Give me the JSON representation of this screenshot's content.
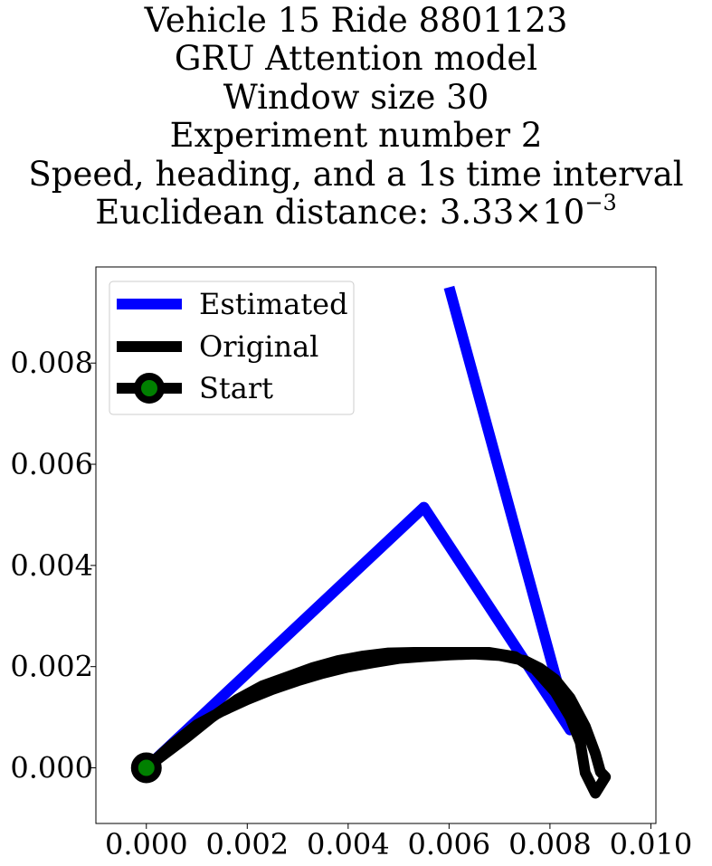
{
  "chart_data": {
    "type": "line",
    "title": [
      "Vehicle 15 Ride 8801123",
      "GRU Attention model",
      "Window size 30",
      "Experiment number 2",
      "Speed, heading, and a 1s time interval"
    ],
    "distance": {
      "prefix": "Euclidean distance: 3.33×10",
      "exponent": "−3"
    },
    "xlabel": "",
    "ylabel": "",
    "xlim": [
      -0.001,
      0.0101
    ],
    "ylim": [
      -0.0011,
      0.0099
    ],
    "xticks": [
      "0.000",
      "0.002",
      "0.004",
      "0.006",
      "0.008",
      "0.010"
    ],
    "xtick_values": [
      0.0,
      0.002,
      0.004,
      0.006,
      0.008,
      0.01
    ],
    "yticks": [
      "0.000",
      "0.002",
      "0.004",
      "0.006",
      "0.008"
    ],
    "ytick_values": [
      0.0,
      0.002,
      0.004,
      0.006,
      0.008
    ],
    "grid": false,
    "legend": {
      "location": "upper left",
      "entries": [
        "Estimated",
        "Original",
        "Start"
      ]
    },
    "series": [
      {
        "name": "Estimated",
        "color": "#0000ff",
        "x": [
          0.0,
          0.0055,
          0.0084,
          0.006
        ],
        "y": [
          0.0,
          0.00515,
          0.00075,
          0.0095
        ]
      },
      {
        "name": "Original",
        "color": "#000000",
        "x": [
          0.0,
          0.0005,
          0.001,
          0.0015,
          0.002,
          0.0025,
          0.003,
          0.0035,
          0.004,
          0.0045,
          0.005,
          0.0055,
          0.006,
          0.0065,
          0.007,
          0.0075,
          0.0078,
          0.0081,
          0.0084,
          0.0087,
          0.0089,
          0.009,
          0.0091,
          0.0089,
          0.0087,
          0.0086,
          0.0084,
          0.0081,
          0.0077,
          0.0073,
          0.0068,
          0.0063,
          0.0058,
          0.0053,
          0.0048,
          0.0043,
          0.0038,
          0.0033,
          0.0028,
          0.0023,
          0.0018,
          0.0013,
          0.0008,
          0.0004,
          0.0
        ],
        "y": [
          0.0,
          0.00045,
          0.00085,
          0.00112,
          0.00135,
          0.00155,
          0.00172,
          0.00187,
          0.00199,
          0.00208,
          0.00216,
          0.0022,
          0.00223,
          0.00225,
          0.00222,
          0.00212,
          0.00197,
          0.00175,
          0.00138,
          0.00082,
          0.00028,
          -8e-05,
          -0.00018,
          -0.0005,
          -0.0001,
          0.0005,
          0.001,
          0.0015,
          0.00195,
          0.0022,
          0.00228,
          0.00228,
          0.00228,
          0.00228,
          0.00227,
          0.00221,
          0.00212,
          0.00198,
          0.0018,
          0.00162,
          0.00135,
          0.001,
          0.0006,
          0.0003,
          0.0
        ]
      }
    ],
    "start": {
      "name": "Start",
      "x": 0.0,
      "y": 0.0,
      "marker_color": "#008000",
      "edge_color": "#000000"
    }
  }
}
